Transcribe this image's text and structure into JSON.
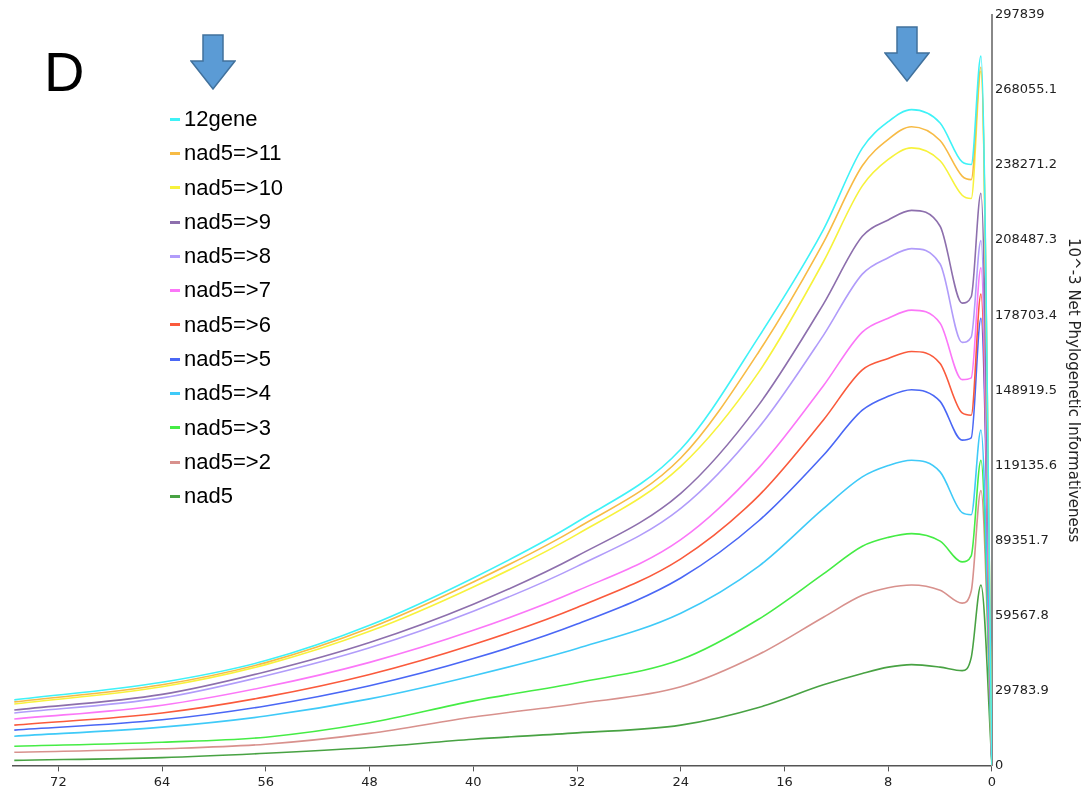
{
  "chart_data": {
    "type": "line",
    "ylabel": "10^-3 Net Phylogenetic Informativeness",
    "annotations": [
      "D"
    ],
    "x": [
      75.4,
      64,
      56,
      48,
      40,
      32,
      24,
      18,
      13,
      10,
      8,
      6.2,
      4,
      2.3,
      1.6,
      0.85,
      0
    ],
    "xlim": [
      75.5,
      0
    ],
    "xticks": [
      72,
      64,
      56,
      48,
      40,
      32,
      24,
      16,
      8,
      0
    ],
    "ylim": [
      0,
      297839
    ],
    "yticks": [
      0,
      29783.9,
      59567.8,
      89351.7,
      119135.6,
      148919.5,
      178703.4,
      208487.3,
      238271.2,
      268055.1,
      297839
    ],
    "grid": false,
    "legend": "top left",
    "marker": "none",
    "line_style": "solid",
    "series": [
      {
        "name": "12gene",
        "color": "#3ff2f7",
        "values": [
          26000,
          33000,
          41600,
          55600,
          74400,
          96600,
          125500,
          170000,
          212700,
          245000,
          255500,
          260300,
          255000,
          239500,
          238500,
          281500,
          0
        ]
      },
      {
        "name": "nad5=>11",
        "color": "#f7bb45",
        "values": [
          25200,
          32000,
          40800,
          54500,
          72800,
          94200,
          122000,
          164000,
          207500,
          238000,
          248500,
          253500,
          248000,
          233900,
          232500,
          277100,
          0
        ]
      },
      {
        "name": "nad5=>10",
        "color": "#f7f23c",
        "values": [
          24400,
          31200,
          40000,
          53200,
          70800,
          91700,
          118700,
          156000,
          199900,
          230000,
          240500,
          245100,
          240000,
          226300,
          225000,
          275500,
          0
        ]
      },
      {
        "name": "nad5=>9",
        "color": "#8d6fad",
        "values": [
          22000,
          28200,
          37200,
          48800,
          64000,
          83100,
          108000,
          143000,
          183100,
          210000,
          216500,
          220300,
          214000,
          183500,
          186000,
          227100,
          0
        ]
      },
      {
        "name": "nad5=>8",
        "color": "#b19cfa",
        "values": [
          20800,
          26800,
          35600,
          46700,
          61200,
          79000,
          102000,
          134000,
          170700,
          195000,
          201500,
          205100,
          199000,
          167900,
          170000,
          208300,
          0
        ]
      },
      {
        "name": "nad5=>7",
        "color": "#fb77f8",
        "values": [
          18400,
          23900,
          31200,
          40900,
          53600,
          69300,
          89600,
          118000,
          150700,
          172000,
          177500,
          180700,
          175500,
          153100,
          153800,
          197500,
          0
        ]
      },
      {
        "name": "nad5=>6",
        "color": "#fa5a3c",
        "values": [
          16000,
          20800,
          27200,
          36100,
          48000,
          62700,
          82000,
          107000,
          137100,
          157000,
          161500,
          164300,
          159500,
          139900,
          139000,
          187100,
          0
        ]
      },
      {
        "name": "nad5=>5",
        "color": "#4a67f5",
        "values": [
          14000,
          18100,
          23600,
          31600,
          42400,
          56100,
          74400,
          97000,
          123100,
          141000,
          146500,
          149100,
          144500,
          129100,
          130000,
          177500,
          0
        ]
      },
      {
        "name": "nad5=>4",
        "color": "#3fcaf8",
        "values": [
          11600,
          15200,
          19600,
          26400,
          35600,
          46400,
          60400,
          79000,
          101900,
          114500,
          119000,
          121100,
          116500,
          100300,
          99500,
          133100,
          0
        ]
      },
      {
        "name": "nad5=>3",
        "color": "#45ec45",
        "values": [
          7600,
          9200,
          11200,
          16900,
          25600,
          32800,
          42000,
          58000,
          76000,
          87000,
          90500,
          92000,
          89000,
          80800,
          83200,
          121100,
          0
        ]
      },
      {
        "name": "nad5=>2",
        "color": "#d8918d",
        "values": [
          5200,
          6600,
          8400,
          12700,
          19200,
          24500,
          31200,
          44000,
          58800,
          67500,
          70500,
          71600,
          69500,
          64400,
          69200,
          109100,
          0
        ]
      },
      {
        "name": "nad5",
        "color": "#48a243",
        "values": [
          2000,
          3100,
          4800,
          7100,
          10400,
          12900,
          16000,
          23000,
          32000,
          36500,
          39000,
          40000,
          39000,
          37600,
          42800,
          71600,
          0
        ]
      }
    ]
  }
}
